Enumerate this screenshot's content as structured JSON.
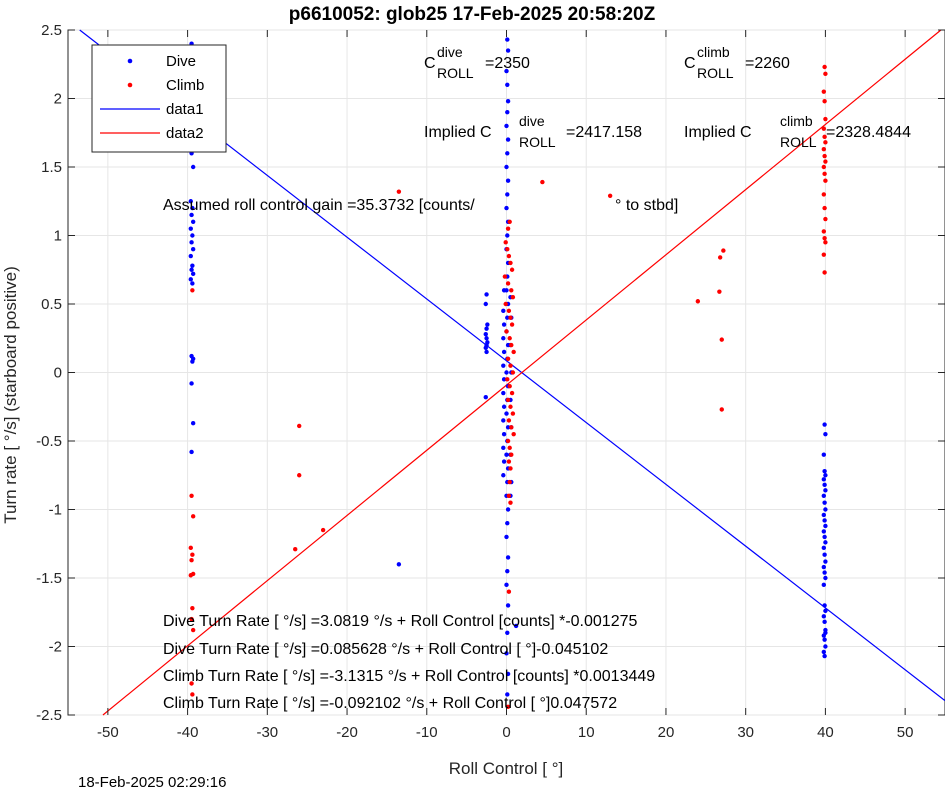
{
  "chart_data": {
    "type": "scatter",
    "title": "p6610052: glob25 17-Feb-2025 20:58:20Z",
    "xlabel": "Roll Control [   °]",
    "ylabel": "Turn rate [   °/s] (starboard positive)",
    "xlim": [
      -55,
      55
    ],
    "ylim": [
      -2.5,
      2.5
    ],
    "xticks": [
      -50,
      -40,
      -30,
      -20,
      -10,
      0,
      10,
      20,
      30,
      40,
      50
    ],
    "yticks": [
      -2.5,
      -2,
      -1.5,
      -1,
      -0.5,
      0,
      0.5,
      1,
      1.5,
      2,
      2.5
    ],
    "xtick_labels": [
      "-50",
      "-40",
      "-30",
      "-20",
      "-10",
      "0",
      "10",
      "20",
      "30",
      "40",
      "50"
    ],
    "ytick_labels": [
      "-2.5",
      "-2",
      "-1.5",
      "-1",
      "-0.5",
      "0",
      "0.5",
      "1",
      "1.5",
      "2",
      "2.5"
    ],
    "grid": true,
    "legend_position": "top-left",
    "series": [
      {
        "name": "Dive",
        "kind": "scatter",
        "color": "#0000ff",
        "points": [
          [
            -39.5,
            2.4
          ],
          [
            -39.3,
            2.13
          ],
          [
            -39.6,
            1.9
          ],
          [
            -39.4,
            1.78
          ],
          [
            -39.5,
            1.6
          ],
          [
            -39.3,
            1.5
          ],
          [
            -39.6,
            1.25
          ],
          [
            -39.4,
            1.2
          ],
          [
            -39.5,
            1.15
          ],
          [
            -39.3,
            1.1
          ],
          [
            -39.6,
            1.05
          ],
          [
            -39.4,
            1.0
          ],
          [
            -39.5,
            0.95
          ],
          [
            -39.3,
            0.9
          ],
          [
            -39.6,
            0.85
          ],
          [
            -39.4,
            0.78
          ],
          [
            -39.5,
            0.75
          ],
          [
            -39.3,
            0.72
          ],
          [
            -39.6,
            0.68
          ],
          [
            -39.4,
            0.65
          ],
          [
            -39.5,
            0.12
          ],
          [
            -39.3,
            0.1
          ],
          [
            -39.4,
            0.08
          ],
          [
            -39.5,
            -0.08
          ],
          [
            -39.3,
            -0.37
          ],
          [
            -39.5,
            -0.58
          ],
          [
            -13.5,
            -1.4
          ],
          [
            -2.5,
            0.57
          ],
          [
            -2.6,
            0.5
          ],
          [
            -2.4,
            0.35
          ],
          [
            -2.5,
            0.32
          ],
          [
            -2.6,
            0.28
          ],
          [
            -2.5,
            0.25
          ],
          [
            -2.4,
            0.22
          ],
          [
            -2.5,
            0.2
          ],
          [
            -2.6,
            0.18
          ],
          [
            -2.5,
            0.15
          ],
          [
            -2.6,
            -0.18
          ],
          [
            0.1,
            2.43
          ],
          [
            0.2,
            2.35
          ],
          [
            0.0,
            2.2
          ],
          [
            0.1,
            2.1
          ],
          [
            0.2,
            1.98
          ],
          [
            0.1,
            1.9
          ],
          [
            0.0,
            1.8
          ],
          [
            0.2,
            1.7
          ],
          [
            0.1,
            1.6
          ],
          [
            0.0,
            1.5
          ],
          [
            0.2,
            1.4
          ],
          [
            0.1,
            1.3
          ],
          [
            0.0,
            1.2
          ],
          [
            0.2,
            1.1
          ],
          [
            0.1,
            1.0
          ],
          [
            0.0,
            0.9
          ],
          [
            0.2,
            0.8
          ],
          [
            0.1,
            0.7
          ],
          [
            0.0,
            0.6
          ],
          [
            0.2,
            0.5
          ],
          [
            0.1,
            0.4
          ],
          [
            0.0,
            0.3
          ],
          [
            0.2,
            0.2
          ],
          [
            0.1,
            0.1
          ],
          [
            0.0,
            0.0
          ],
          [
            0.2,
            -0.1
          ],
          [
            0.1,
            -0.2
          ],
          [
            0.0,
            -0.3
          ],
          [
            0.2,
            -0.4
          ],
          [
            0.1,
            -0.5
          ],
          [
            0.0,
            -0.6
          ],
          [
            0.2,
            -0.7
          ],
          [
            0.1,
            -0.8
          ],
          [
            0.0,
            -0.9
          ],
          [
            0.2,
            -1.0
          ],
          [
            0.1,
            -1.1
          ],
          [
            0.0,
            -1.2
          ],
          [
            0.2,
            -1.35
          ],
          [
            0.1,
            -1.45
          ],
          [
            0.0,
            -1.55
          ],
          [
            0.2,
            -1.7
          ],
          [
            0.1,
            -1.9
          ],
          [
            0.0,
            -2.05
          ],
          [
            0.2,
            -2.2
          ],
          [
            0.1,
            -2.35
          ],
          [
            -0.3,
            0.6
          ],
          [
            -0.4,
            0.45
          ],
          [
            -0.3,
            0.35
          ],
          [
            -0.4,
            0.25
          ],
          [
            -0.3,
            0.15
          ],
          [
            -0.4,
            0.05
          ],
          [
            -0.3,
            -0.05
          ],
          [
            -0.4,
            -0.15
          ],
          [
            -0.3,
            -0.25
          ],
          [
            -0.4,
            -0.35
          ],
          [
            -0.3,
            -0.45
          ],
          [
            -0.4,
            -0.55
          ],
          [
            -0.3,
            -0.65
          ],
          [
            -0.4,
            -0.75
          ],
          [
            0.5,
            0.55
          ],
          [
            0.6,
            0.4
          ],
          [
            0.5,
            0.2
          ],
          [
            0.6,
            0.0
          ],
          [
            0.5,
            -0.2
          ],
          [
            0.6,
            -0.4
          ],
          [
            0.5,
            -0.6
          ],
          [
            0.6,
            -0.8
          ],
          [
            0.5,
            -0.9
          ],
          [
            1.2,
            -1.85
          ],
          [
            39.9,
            -0.38
          ],
          [
            40.0,
            -0.45
          ],
          [
            39.8,
            -0.6
          ],
          [
            39.9,
            -0.72
          ],
          [
            40.0,
            -0.75
          ],
          [
            39.8,
            -0.78
          ],
          [
            39.9,
            -0.82
          ],
          [
            40.0,
            -0.86
          ],
          [
            39.8,
            -0.9
          ],
          [
            39.9,
            -0.95
          ],
          [
            40.0,
            -1.0
          ],
          [
            39.8,
            -1.04
          ],
          [
            39.9,
            -1.08
          ],
          [
            40.0,
            -1.12
          ],
          [
            39.8,
            -1.16
          ],
          [
            39.9,
            -1.2
          ],
          [
            40.0,
            -1.24
          ],
          [
            39.8,
            -1.28
          ],
          [
            39.9,
            -1.33
          ],
          [
            40.0,
            -1.38
          ],
          [
            39.8,
            -1.42
          ],
          [
            39.9,
            -1.46
          ],
          [
            40.0,
            -1.5
          ],
          [
            39.8,
            -1.55
          ],
          [
            39.9,
            -1.7
          ],
          [
            40.0,
            -1.74
          ],
          [
            39.8,
            -1.78
          ],
          [
            39.9,
            -1.82
          ],
          [
            40.0,
            -1.88
          ],
          [
            39.8,
            -1.92
          ],
          [
            39.9,
            -1.95
          ],
          [
            40.0,
            -2.0
          ],
          [
            39.8,
            -2.04
          ],
          [
            39.9,
            -2.07
          ],
          [
            40.0,
            -1.9
          ]
        ]
      },
      {
        "name": "Climb",
        "kind": "scatter",
        "color": "#ff0000",
        "points": [
          [
            -39.4,
            0.6
          ],
          [
            -39.5,
            -0.9
          ],
          [
            -39.3,
            -1.05
          ],
          [
            -39.6,
            -1.28
          ],
          [
            -39.4,
            -1.33
          ],
          [
            -39.5,
            -1.37
          ],
          [
            -39.3,
            -1.47
          ],
          [
            -39.6,
            -1.48
          ],
          [
            -39.4,
            -1.72
          ],
          [
            -39.5,
            -1.8
          ],
          [
            -39.3,
            -1.88
          ],
          [
            -39.5,
            -2.27
          ],
          [
            -39.4,
            -2.35
          ],
          [
            -26,
            -0.39
          ],
          [
            -26,
            -0.75
          ],
          [
            -26.5,
            -1.29
          ],
          [
            -23,
            -1.15
          ],
          [
            -13.5,
            1.32
          ],
          [
            4.5,
            1.39
          ],
          [
            13,
            1.29
          ],
          [
            24,
            0.52
          ],
          [
            26.7,
            0.59
          ],
          [
            26.8,
            0.84
          ],
          [
            27.2,
            0.89
          ],
          [
            27,
            0.24
          ],
          [
            27,
            -0.27
          ],
          [
            39.9,
            2.23
          ],
          [
            40.0,
            2.18
          ],
          [
            39.8,
            2.05
          ],
          [
            39.9,
            1.98
          ],
          [
            40.0,
            1.85
          ],
          [
            39.8,
            1.78
          ],
          [
            39.9,
            1.72
          ],
          [
            40.0,
            1.68
          ],
          [
            39.8,
            1.63
          ],
          [
            39.9,
            1.58
          ],
          [
            40.0,
            1.54
          ],
          [
            39.8,
            1.5
          ],
          [
            39.9,
            1.45
          ],
          [
            40.0,
            1.4
          ],
          [
            39.8,
            1.3
          ],
          [
            39.9,
            1.2
          ],
          [
            40.0,
            1.12
          ],
          [
            39.8,
            1.03
          ],
          [
            39.9,
            0.98
          ],
          [
            40.0,
            0.95
          ],
          [
            39.8,
            0.86
          ],
          [
            39.9,
            0.73
          ],
          [
            -0.1,
            0.95
          ],
          [
            0.1,
            0.9
          ],
          [
            0.3,
            0.85
          ],
          [
            0.5,
            0.8
          ],
          [
            0.7,
            0.75
          ],
          [
            -0.2,
            0.7
          ],
          [
            0.2,
            0.65
          ],
          [
            0.6,
            0.6
          ],
          [
            0.8,
            0.55
          ],
          [
            -0.1,
            0.5
          ],
          [
            0.3,
            0.45
          ],
          [
            0.5,
            0.4
          ],
          [
            0.7,
            0.35
          ],
          [
            0.0,
            0.3
          ],
          [
            0.4,
            0.25
          ],
          [
            0.6,
            0.2
          ],
          [
            0.9,
            0.15
          ],
          [
            0.2,
            0.1
          ],
          [
            0.5,
            0.05
          ],
          [
            0.8,
            0.0
          ],
          [
            0.1,
            -0.05
          ],
          [
            0.4,
            -0.1
          ],
          [
            0.7,
            -0.15
          ],
          [
            0.2,
            -0.2
          ],
          [
            0.5,
            -0.25
          ],
          [
            0.8,
            -0.3
          ],
          [
            0.3,
            -0.35
          ],
          [
            0.6,
            -0.4
          ],
          [
            0.9,
            -0.45
          ],
          [
            0.2,
            -0.5
          ],
          [
            0.4,
            -0.55
          ],
          [
            0.6,
            -0.6
          ],
          [
            0.3,
            -0.65
          ],
          [
            0.5,
            -0.7
          ],
          [
            0.4,
            -0.8
          ],
          [
            0.3,
            -0.9
          ],
          [
            0.5,
            -0.95
          ],
          [
            0.2,
            1.05
          ],
          [
            0.4,
            1.1
          ],
          [
            0.3,
            -1.6
          ],
          [
            0.2,
            -2.44
          ]
        ]
      },
      {
        "name": "data1",
        "kind": "line",
        "color": "#0000ff",
        "slope": -0.045102,
        "intercept": 0.085628
      },
      {
        "name": "data2",
        "kind": "line",
        "color": "#ff0000",
        "slope": 0.047572,
        "intercept": -0.092102
      }
    ],
    "annotations": {
      "c_roll_dive_prefix": "C",
      "c_roll_dive_sup": "dive",
      "c_roll_dive_sub": "ROLL",
      "c_roll_dive_value": "=2350",
      "c_roll_climb_prefix": "C",
      "c_roll_climb_sup": "climb",
      "c_roll_climb_sub": "ROLL",
      "c_roll_climb_value": "=2260",
      "implied_dive_prefix": "Implied C",
      "implied_dive_sup": "dive",
      "implied_dive_sub": "ROLL",
      "implied_dive_value": "=2417.158",
      "implied_climb_prefix": "Implied C",
      "implied_climb_sup": "climb",
      "implied_climb_sub": "ROLL",
      "implied_climb_value": "=2328.4844",
      "gain_text": "Assumed roll control gain =35.3732 [counts/",
      "gain_unit": "° to stbd]",
      "fit_lines": [
        "Dive Turn Rate [    °/s] =3.0819     °/s + Roll Control [counts] *-0.001275",
        "Dive Turn Rate [    °/s] =0.085628     °/s + Roll Control [     °]-0.045102",
        "Climb Turn Rate [    °/s] =-3.1315     °/s + Roll Control [counts] *0.0013449",
        "Climb Turn Rate [    °/s] =-0.092102     °/s + Roll Control [     °]0.047572"
      ]
    }
  },
  "footer_timestamp": "18-Feb-2025 02:29:16"
}
